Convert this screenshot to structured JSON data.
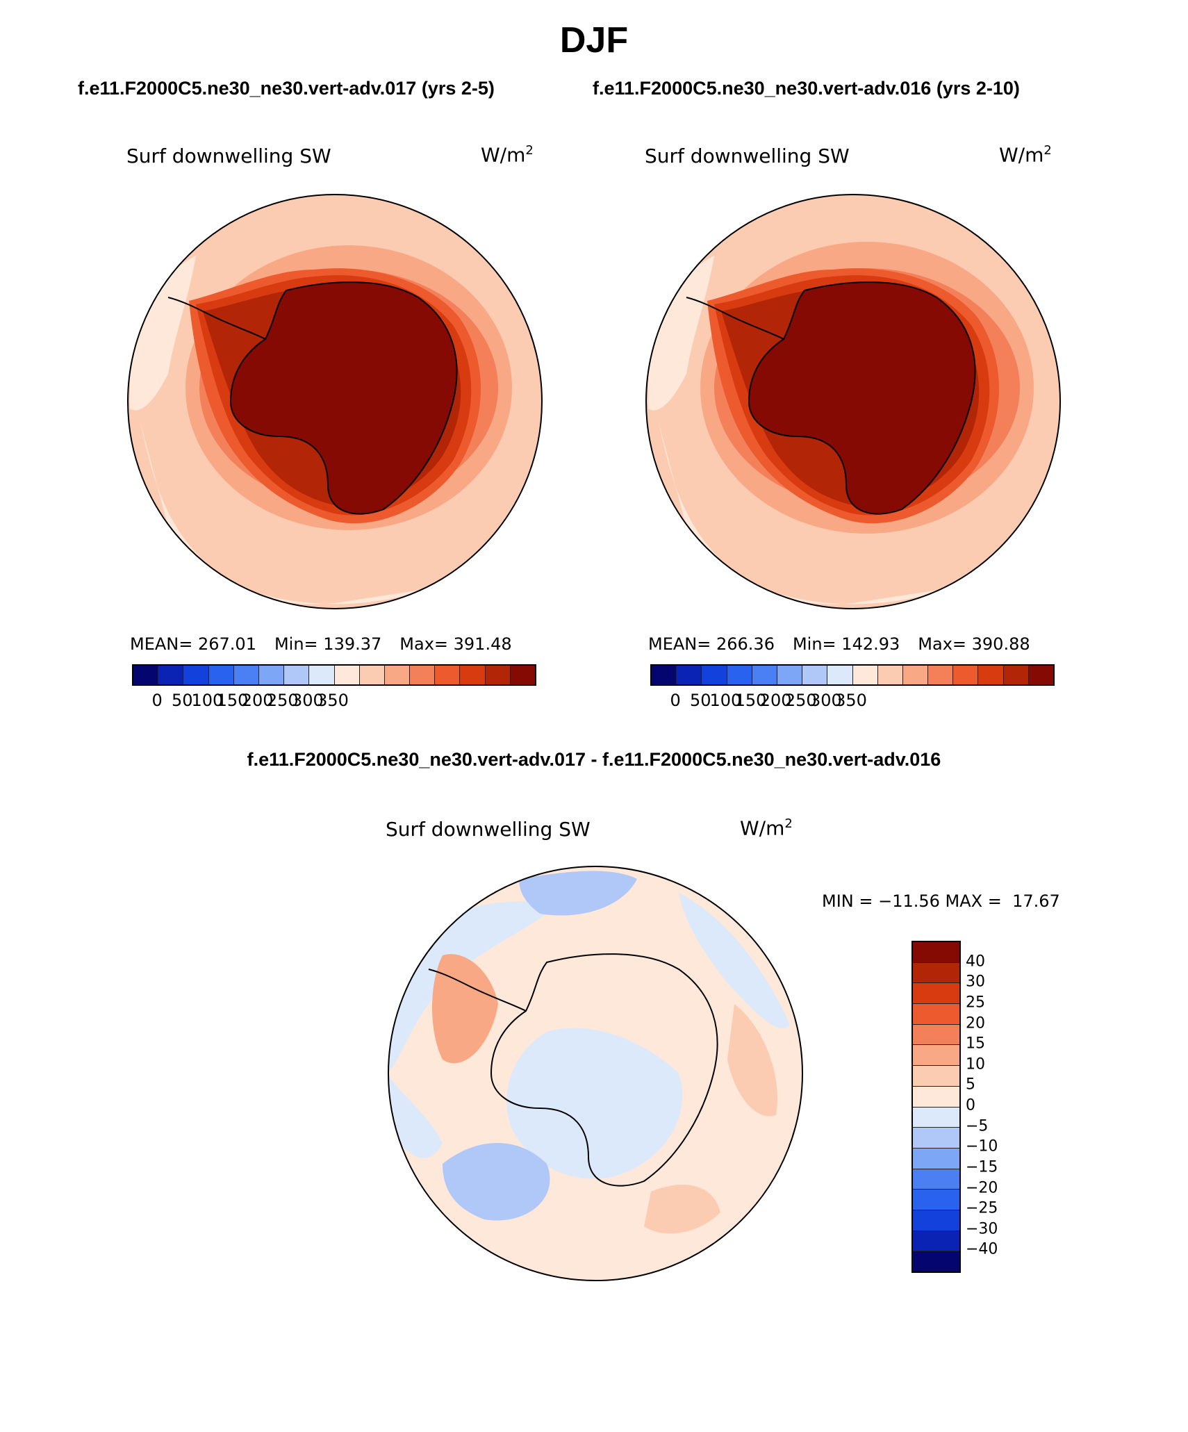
{
  "page": {
    "title": "DJF",
    "left_case": "f.e11.F2000C5.ne30_ne30.vert-adv.017 (yrs 2-5)",
    "right_case": "f.e11.F2000C5.ne30_ne30.vert-adv.016 (yrs 2-10)",
    "diff_title": "f.e11.F2000C5.ne30_ne30.vert-adv.017 - f.e11.F2000C5.ne30_ne30.vert-adv.016"
  },
  "panels": {
    "variable": "Surf downwelling SW",
    "units_base": "W/m",
    "units_exp": "2",
    "left": {
      "mean": "MEAN= 267.01",
      "min": "Min= 139.37",
      "max": "Max= 391.48"
    },
    "right": {
      "mean": "MEAN= 266.36",
      "min": "Min= 142.93",
      "max": "Max= 390.88"
    },
    "diff": {
      "minmax": "MIN = −11.56 MAX =  17.67"
    }
  },
  "colorbars": {
    "abs": {
      "ticks": [
        "0",
        "50",
        "100",
        "150",
        "200",
        "250",
        "300",
        "350"
      ],
      "colors": [
        "#04056f",
        "#0a23b5",
        "#1341dc",
        "#2a62f0",
        "#4b80f4",
        "#7ea6f6",
        "#b0c8f8",
        "#dce9fa",
        "#fde8da",
        "#fcccb2",
        "#f8a884",
        "#f4805a",
        "#ec5a2d",
        "#d83b10",
        "#b22607",
        "#860a04"
      ]
    },
    "diff": {
      "labels": [
        "40",
        "30",
        "25",
        "20",
        "15",
        "10",
        "5",
        "0",
        "−5",
        "−10",
        "−15",
        "−20",
        "−25",
        "−30",
        "−40"
      ],
      "colors_top_to_bottom": [
        "#860a04",
        "#b22607",
        "#d83b10",
        "#ec5a2d",
        "#f4805a",
        "#f8a884",
        "#fcccb2",
        "#fde8da",
        "#dce9fa",
        "#b0c8f8",
        "#7ea6f6",
        "#4b80f4",
        "#2a62f0",
        "#1341dc",
        "#0a23b5",
        "#04056f"
      ]
    }
  },
  "chart_data": [
    {
      "type": "heatmap",
      "title": "Surf downwelling SW",
      "units": "W/m^2",
      "projection": "south polar stereographic",
      "stats": {
        "mean": 267.01,
        "min": 139.37,
        "max": 391.48
      },
      "colorbar_levels": [
        0,
        50,
        100,
        150,
        200,
        250,
        300,
        350
      ],
      "description_values": {
        "antarctic_interior": "> 350",
        "coastal_ring": "300-350",
        "southern_ocean": "200-300",
        "outer_edge": "150-250"
      }
    },
    {
      "type": "heatmap",
      "title": "Surf downwelling SW",
      "units": "W/m^2",
      "projection": "south polar stereographic",
      "stats": {
        "mean": 266.36,
        "min": 142.93,
        "max": 390.88
      },
      "colorbar_levels": [
        0,
        50,
        100,
        150,
        200,
        250,
        300,
        350
      ]
    },
    {
      "type": "heatmap",
      "title": "Surf downwelling SW",
      "units": "W/m^2",
      "projection": "south polar stereographic",
      "stats": {
        "min": -11.56,
        "max": 17.67
      },
      "colorbar_levels": [
        -40,
        -30,
        -25,
        -20,
        -15,
        -10,
        -5,
        0,
        5,
        10,
        15,
        20,
        25,
        30,
        40
      ]
    }
  ]
}
